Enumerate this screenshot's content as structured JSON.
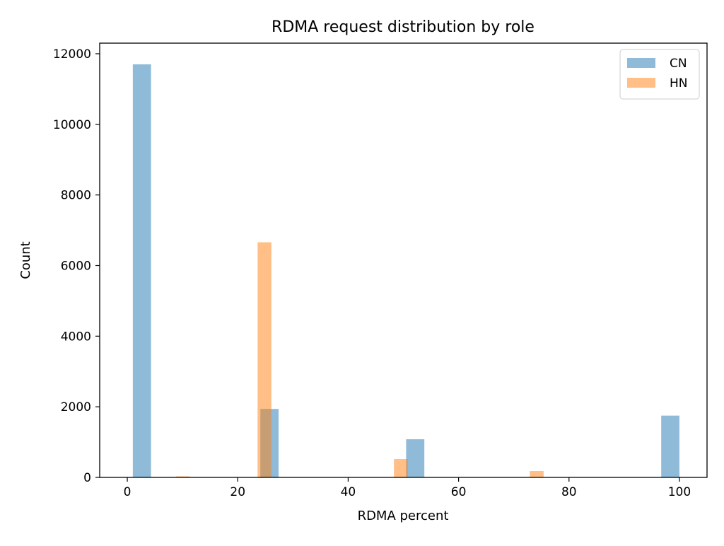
{
  "chart_data": {
    "type": "bar",
    "title": "RDMA request distribution by role",
    "xlabel": "RDMA percent",
    "ylabel": "Count",
    "xlim": [
      -5,
      105
    ],
    "ylim": [
      0,
      12300
    ],
    "xticks": [
      0,
      20,
      40,
      60,
      80,
      100
    ],
    "yticks": [
      0,
      2000,
      4000,
      6000,
      8000,
      10000,
      12000
    ],
    "grid": false,
    "legend_position": "top-right",
    "series": [
      {
        "name": "CN",
        "color": "#1f77b4",
        "alpha": 0.5,
        "bars": [
          {
            "x0": 1.0,
            "x1": 4.3,
            "value": 11700
          },
          {
            "x0": 24.1,
            "x1": 27.4,
            "value": 1940
          },
          {
            "x0": 50.5,
            "x1": 53.8,
            "value": 1080
          },
          {
            "x0": 96.7,
            "x1": 100.0,
            "value": 1750
          }
        ]
      },
      {
        "name": "HN",
        "color": "#ff7f0e",
        "alpha": 0.5,
        "bars": [
          {
            "x0": 8.8,
            "x1": 11.3,
            "value": 30
          },
          {
            "x0": 23.6,
            "x1": 26.1,
            "value": 6660
          },
          {
            "x0": 48.3,
            "x1": 50.8,
            "value": 520
          },
          {
            "x0": 72.9,
            "x1": 75.4,
            "value": 180
          }
        ]
      }
    ]
  }
}
